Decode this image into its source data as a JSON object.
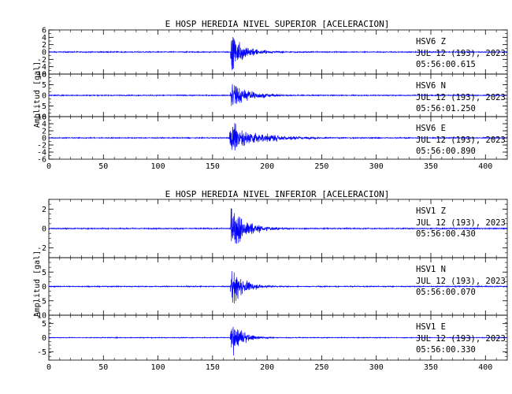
{
  "chart_data": [
    {
      "type": "line",
      "title": "E HOSP HEREDIA NIVEL SUPERIOR [ACELERACION]",
      "ylabel": "Amplitud [gal]",
      "xlabel": "",
      "xlim": [
        0,
        420
      ],
      "xticks": [
        "0",
        "50",
        "100",
        "150",
        "200",
        "250",
        "300",
        "350",
        "400"
      ],
      "line_color": "#0000ff",
      "series": [
        {
          "name": "HSV6 Z",
          "station": "HSV6",
          "component": "Z",
          "date": "JUL 12 (193), 2023",
          "time": "05:56:00.615",
          "ylim": [
            -6,
            6
          ],
          "yticks": [
            "6",
            "4",
            "2",
            "0",
            "-2",
            "-4",
            "-6"
          ],
          "onset_s": 166,
          "peak_abs": 5.5,
          "decay_s": 14,
          "noise": 0.12
        },
        {
          "name": "HSV6 N",
          "station": "HSV6",
          "component": "N",
          "date": "JUL 12 (193), 2023",
          "time": "05:56:01.250",
          "ylim": [
            -10,
            10
          ],
          "yticks": [
            "10",
            "5",
            "0",
            "-5",
            "-10"
          ],
          "onset_s": 166,
          "peak_abs": 8,
          "decay_s": 16,
          "noise": 0.2
        },
        {
          "name": "HSV6 E",
          "station": "HSV6",
          "component": "E",
          "date": "JUL 12 (193), 2023",
          "time": "05:56:00.890",
          "ylim": [
            -6,
            6
          ],
          "yticks": [
            "6",
            "4",
            "2",
            "0",
            "-2",
            "-4",
            "-6"
          ],
          "onset_s": 165,
          "peak_abs": 4.5,
          "decay_s": 28,
          "noise": 0.12
        }
      ]
    },
    {
      "type": "line",
      "title": "E HOSP HEREDIA NIVEL INFERIOR [ACELERACION]",
      "ylabel": "Amplitud [gal]",
      "xlabel": "",
      "xlim": [
        0,
        420
      ],
      "xticks": [
        "0",
        "50",
        "100",
        "150",
        "200",
        "250",
        "300",
        "350",
        "400"
      ],
      "line_color": "#0000ff",
      "series": [
        {
          "name": "HSV1 Z",
          "station": "HSV1",
          "component": "Z",
          "date": "JUL 12 (193), 2023",
          "time": "05:56:00.430",
          "ylim": [
            -3,
            3
          ],
          "yticks": [
            "2",
            "0",
            "-2"
          ],
          "onset_s": 166,
          "peak_abs": 3,
          "decay_s": 14,
          "noise": 0.05
        },
        {
          "name": "HSV1 N",
          "station": "HSV1",
          "component": "N",
          "date": "JUL 12 (193), 2023",
          "time": "05:56:00.070",
          "ylim": [
            -10,
            10
          ],
          "yticks": [
            "5",
            "0",
            "-5",
            "-10"
          ],
          "onset_s": 166,
          "peak_abs": 9,
          "decay_s": 11,
          "noise": 0.15
        },
        {
          "name": "HSV1 E",
          "station": "HSV1",
          "component": "E",
          "date": "JUL 12 (193), 2023",
          "time": "05:56:00.330",
          "ylim": [
            -8,
            8
          ],
          "yticks": [
            "5",
            "0",
            "-5"
          ],
          "onset_s": 166,
          "peak_abs": 8,
          "decay_s": 10,
          "noise": 0.12
        }
      ]
    }
  ]
}
